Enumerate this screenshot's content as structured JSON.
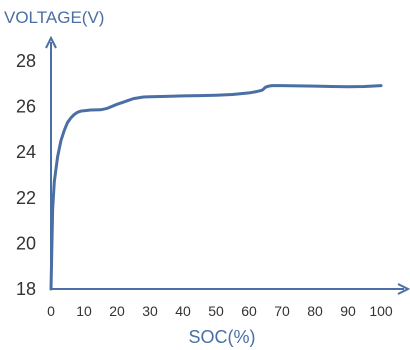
{
  "chart_data": {
    "type": "line",
    "title": "VOLTAGE(V)",
    "xlabel": "SOC(%)",
    "ylabel": "",
    "xlim": [
      0,
      100
    ],
    "ylim": [
      18,
      28
    ],
    "x_ticks": [
      "0",
      "10",
      "20",
      "30",
      "40",
      "50",
      "60",
      "70",
      "80",
      "90",
      "100"
    ],
    "y_ticks": [
      "28",
      "26",
      "24",
      "22",
      "20",
      "18"
    ],
    "grid": false,
    "colors": {
      "line": "#4a6fa5",
      "axis": "#4a6fa5",
      "text": "#333333",
      "title": "#4a6fa5"
    },
    "series": [
      {
        "x": [
          0,
          0.5,
          1,
          2,
          3,
          4,
          5,
          6,
          7,
          8,
          9,
          10,
          12,
          15,
          17,
          20,
          22,
          25,
          28,
          30,
          35,
          40,
          45,
          50,
          55,
          60,
          62,
          64,
          65,
          66,
          67,
          70,
          75,
          80,
          85,
          90,
          95,
          100
        ],
        "y": [
          18,
          21.5,
          22.7,
          23.8,
          24.5,
          24.95,
          25.3,
          25.5,
          25.65,
          25.75,
          25.8,
          25.82,
          25.85,
          25.86,
          25.92,
          26.1,
          26.2,
          26.35,
          26.42,
          26.43,
          26.45,
          26.47,
          26.48,
          26.5,
          26.53,
          26.6,
          26.65,
          26.72,
          26.85,
          26.9,
          26.92,
          26.92,
          26.91,
          26.9,
          26.88,
          26.87,
          26.88,
          26.92
        ]
      }
    ]
  }
}
